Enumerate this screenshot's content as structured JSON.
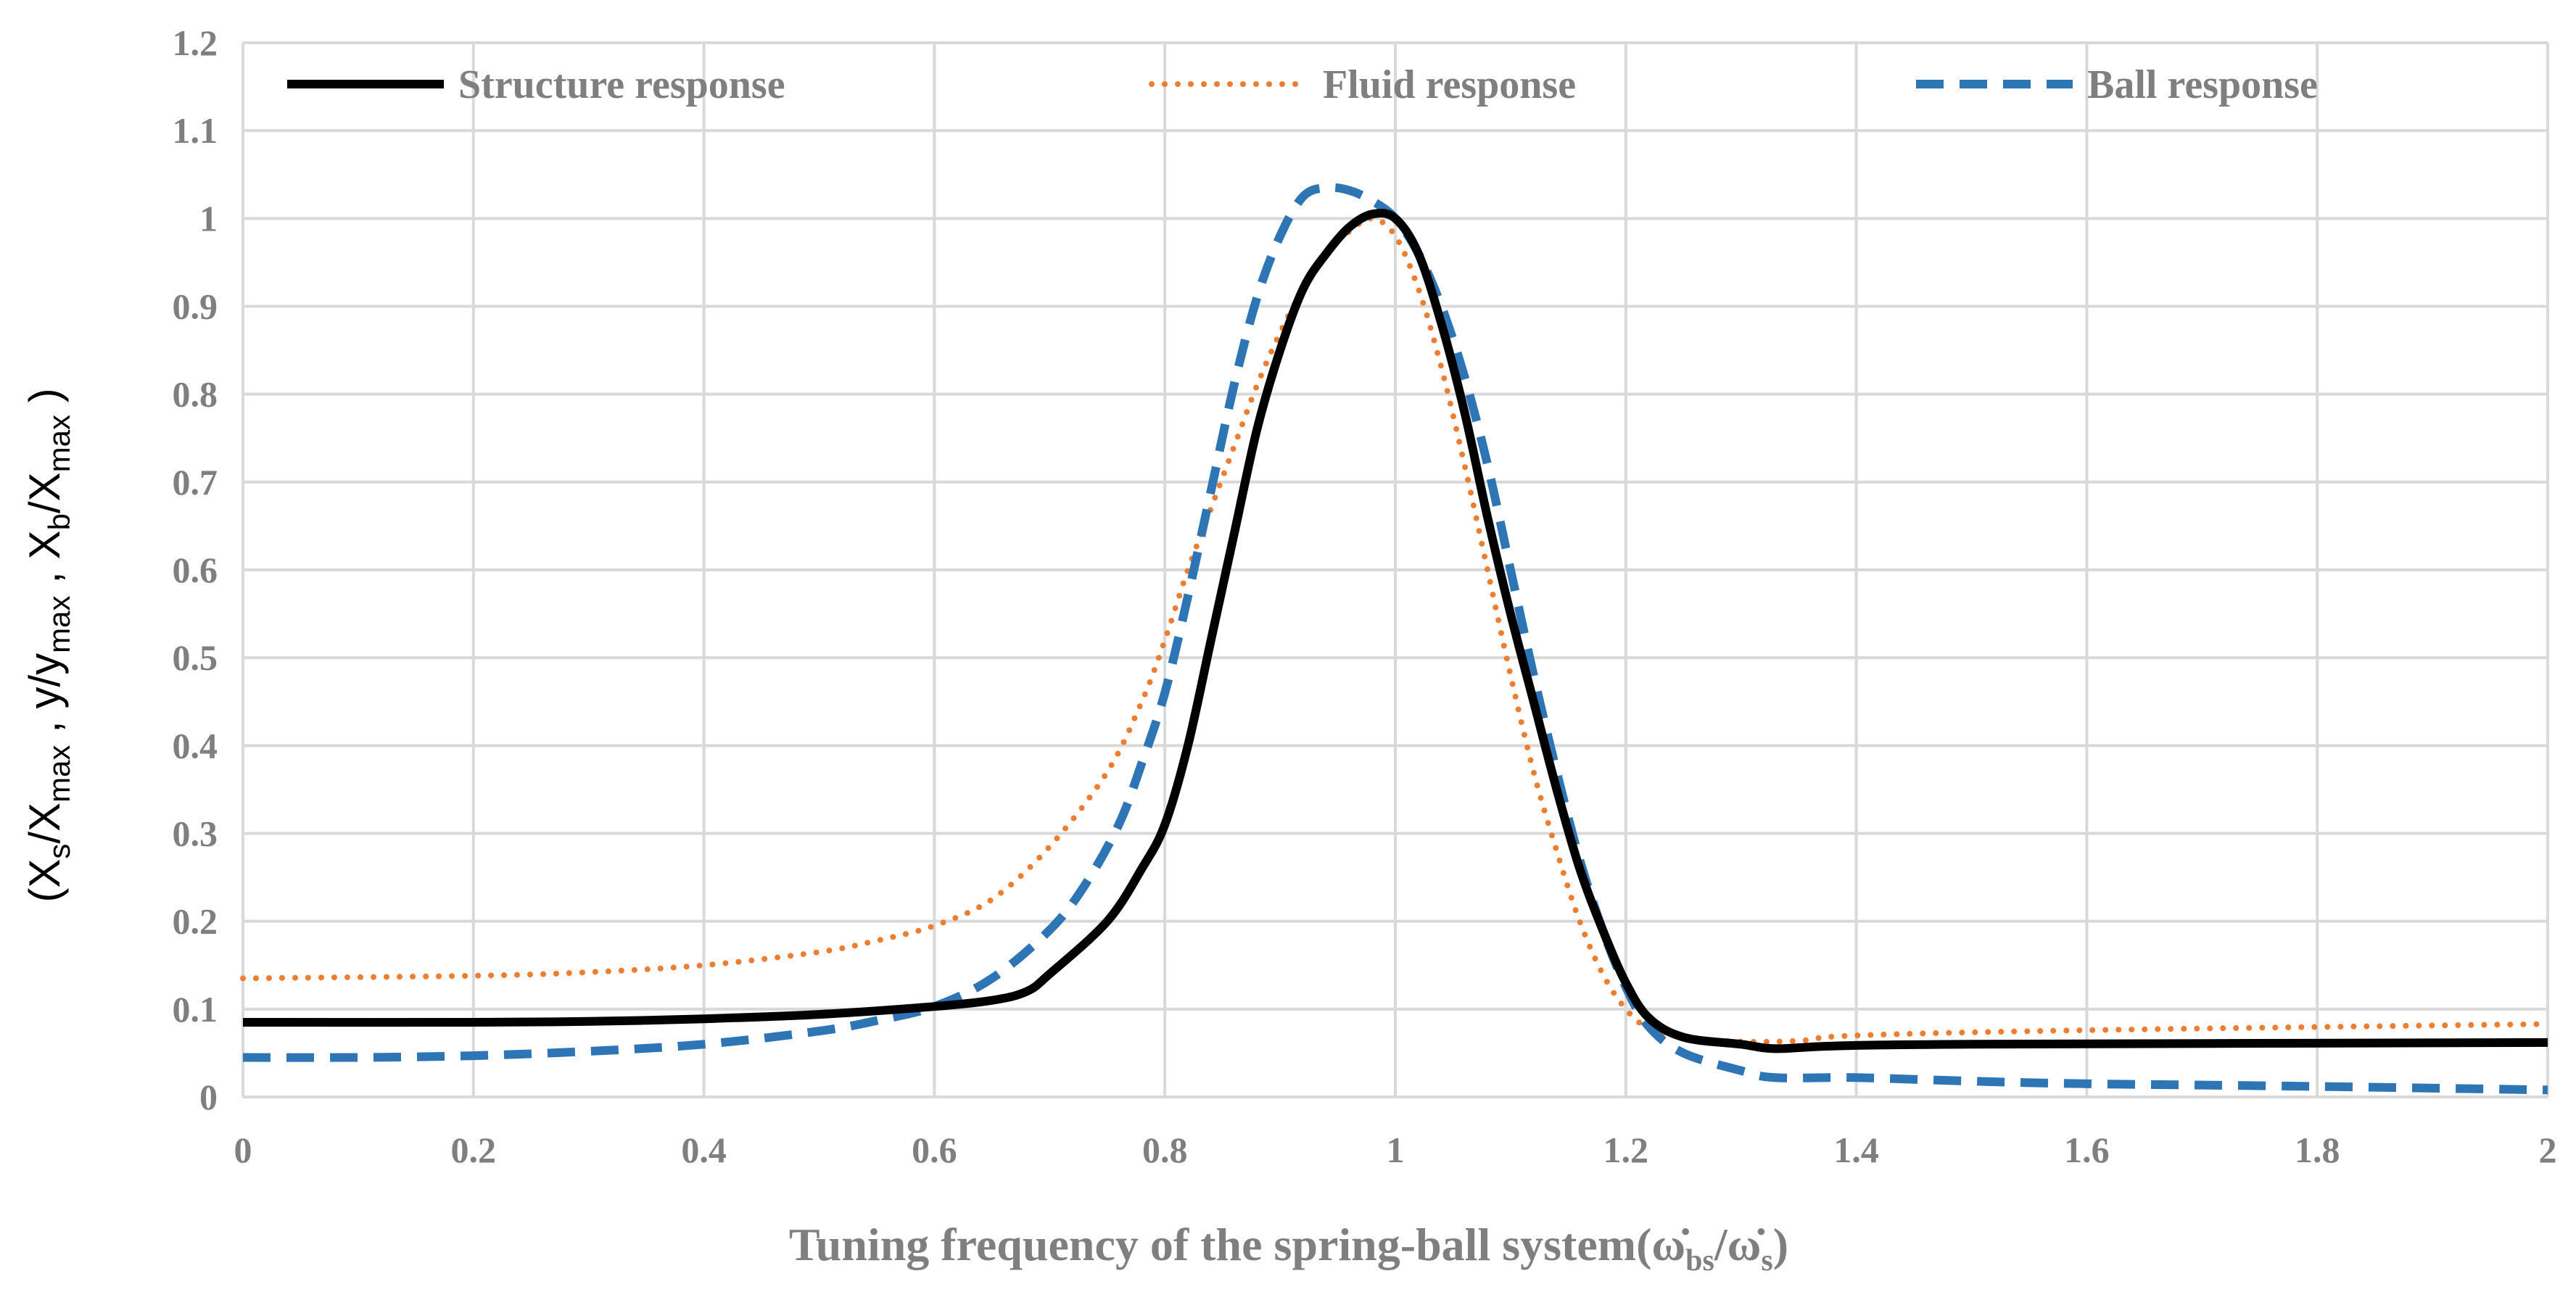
{
  "chart_data": {
    "type": "line",
    "title": "",
    "xlabel": "Tuning frequency of the spring-ball system(ω̇bs/ω̇s)",
    "xlabel_parts": {
      "main": "Tuning frequency of the spring-ball system(",
      "w1": "ω̇",
      "s1": "bs",
      "slash": "/",
      "w2": "ω̇",
      "s2": "s",
      "close": ")"
    },
    "ylabel": "(Xs/Xmax , y/ymax , Xb/Xmax )",
    "ylabel_parts": {
      "open": "(X",
      "s1": "s",
      "p1": "/X",
      "s2": "max",
      "p2": " , y/y",
      "s3": "max",
      "p3": " , X",
      "s4": "b",
      "p4": "/X",
      "s5": "max",
      "close": " )"
    },
    "xlim": [
      0,
      2
    ],
    "ylim": [
      0,
      1.2
    ],
    "xticks": [
      "0",
      "0.2",
      "0.4",
      "0.6",
      "0.8",
      "1",
      "1.2",
      "1.4",
      "1.6",
      "1.8",
      "2"
    ],
    "yticks": [
      "0",
      "0.1",
      "0.2",
      "0.3",
      "0.4",
      "0.5",
      "0.6",
      "0.7",
      "0.8",
      "0.9",
      "1",
      "1.1",
      "1.2"
    ],
    "grid": true,
    "legend_position": "top",
    "series": [
      {
        "name": "Structure response",
        "color": "#000000",
        "style": "solid",
        "points": [
          [
            0,
            0.085
          ],
          [
            0.2,
            0.085
          ],
          [
            0.3,
            0.086
          ],
          [
            0.4,
            0.089
          ],
          [
            0.5,
            0.094
          ],
          [
            0.6,
            0.103
          ],
          [
            0.65,
            0.11
          ],
          [
            0.68,
            0.12
          ],
          [
            0.7,
            0.14
          ],
          [
            0.75,
            0.2
          ],
          [
            0.78,
            0.26
          ],
          [
            0.8,
            0.31
          ],
          [
            0.82,
            0.4
          ],
          [
            0.84,
            0.52
          ],
          [
            0.86,
            0.64
          ],
          [
            0.88,
            0.76
          ],
          [
            0.9,
            0.85
          ],
          [
            0.92,
            0.92
          ],
          [
            0.94,
            0.96
          ],
          [
            0.96,
            0.99
          ],
          [
            0.98,
            1.005
          ],
          [
            1.0,
            1.0
          ],
          [
            1.02,
            0.96
          ],
          [
            1.04,
            0.88
          ],
          [
            1.06,
            0.78
          ],
          [
            1.08,
            0.66
          ],
          [
            1.1,
            0.55
          ],
          [
            1.12,
            0.45
          ],
          [
            1.14,
            0.35
          ],
          [
            1.16,
            0.26
          ],
          [
            1.18,
            0.19
          ],
          [
            1.2,
            0.13
          ],
          [
            1.22,
            0.09
          ],
          [
            1.25,
            0.068
          ],
          [
            1.3,
            0.06
          ],
          [
            1.33,
            0.055
          ],
          [
            1.38,
            0.058
          ],
          [
            1.5,
            0.06
          ],
          [
            2.0,
            0.062
          ]
        ]
      },
      {
        "name": "Fluid response",
        "color": "#ed7d31",
        "style": "dotted",
        "points": [
          [
            0,
            0.135
          ],
          [
            0.2,
            0.138
          ],
          [
            0.3,
            0.142
          ],
          [
            0.4,
            0.15
          ],
          [
            0.5,
            0.165
          ],
          [
            0.55,
            0.178
          ],
          [
            0.6,
            0.195
          ],
          [
            0.65,
            0.225
          ],
          [
            0.7,
            0.285
          ],
          [
            0.75,
            0.37
          ],
          [
            0.78,
            0.45
          ],
          [
            0.8,
            0.52
          ],
          [
            0.82,
            0.6
          ],
          [
            0.84,
            0.67
          ],
          [
            0.86,
            0.74
          ],
          [
            0.88,
            0.81
          ],
          [
            0.9,
            0.87
          ],
          [
            0.92,
            0.92
          ],
          [
            0.94,
            0.96
          ],
          [
            0.96,
            0.985
          ],
          [
            0.98,
            1.0
          ],
          [
            1.0,
            0.98
          ],
          [
            1.02,
            0.92
          ],
          [
            1.04,
            0.83
          ],
          [
            1.06,
            0.72
          ],
          [
            1.08,
            0.6
          ],
          [
            1.1,
            0.48
          ],
          [
            1.12,
            0.37
          ],
          [
            1.14,
            0.28
          ],
          [
            1.16,
            0.2
          ],
          [
            1.18,
            0.14
          ],
          [
            1.2,
            0.1
          ],
          [
            1.22,
            0.078
          ],
          [
            1.25,
            0.068
          ],
          [
            1.3,
            0.063
          ],
          [
            1.35,
            0.064
          ],
          [
            1.4,
            0.07
          ],
          [
            1.6,
            0.076
          ],
          [
            2.0,
            0.083
          ]
        ]
      },
      {
        "name": "Ball response",
        "color": "#2e75b6",
        "style": "dashed",
        "points": [
          [
            0,
            0.045
          ],
          [
            0.1,
            0.045
          ],
          [
            0.2,
            0.047
          ],
          [
            0.3,
            0.052
          ],
          [
            0.4,
            0.06
          ],
          [
            0.5,
            0.075
          ],
          [
            0.55,
            0.087
          ],
          [
            0.6,
            0.103
          ],
          [
            0.65,
            0.135
          ],
          [
            0.7,
            0.19
          ],
          [
            0.73,
            0.24
          ],
          [
            0.76,
            0.31
          ],
          [
            0.78,
            0.38
          ],
          [
            0.8,
            0.46
          ],
          [
            0.82,
            0.57
          ],
          [
            0.84,
            0.69
          ],
          [
            0.86,
            0.81
          ],
          [
            0.88,
            0.91
          ],
          [
            0.9,
            0.98
          ],
          [
            0.92,
            1.025
          ],
          [
            0.94,
            1.035
          ],
          [
            0.96,
            1.032
          ],
          [
            0.98,
            1.02
          ],
          [
            1.0,
            1.0
          ],
          [
            1.02,
            0.96
          ],
          [
            1.04,
            0.9
          ],
          [
            1.06,
            0.82
          ],
          [
            1.08,
            0.72
          ],
          [
            1.1,
            0.6
          ],
          [
            1.12,
            0.48
          ],
          [
            1.14,
            0.37
          ],
          [
            1.16,
            0.27
          ],
          [
            1.18,
            0.19
          ],
          [
            1.2,
            0.125
          ],
          [
            1.22,
            0.08
          ],
          [
            1.25,
            0.05
          ],
          [
            1.3,
            0.03
          ],
          [
            1.33,
            0.022
          ],
          [
            1.4,
            0.022
          ],
          [
            1.5,
            0.018
          ],
          [
            1.6,
            0.015
          ],
          [
            1.8,
            0.012
          ],
          [
            2.0,
            0.008
          ]
        ]
      }
    ]
  }
}
